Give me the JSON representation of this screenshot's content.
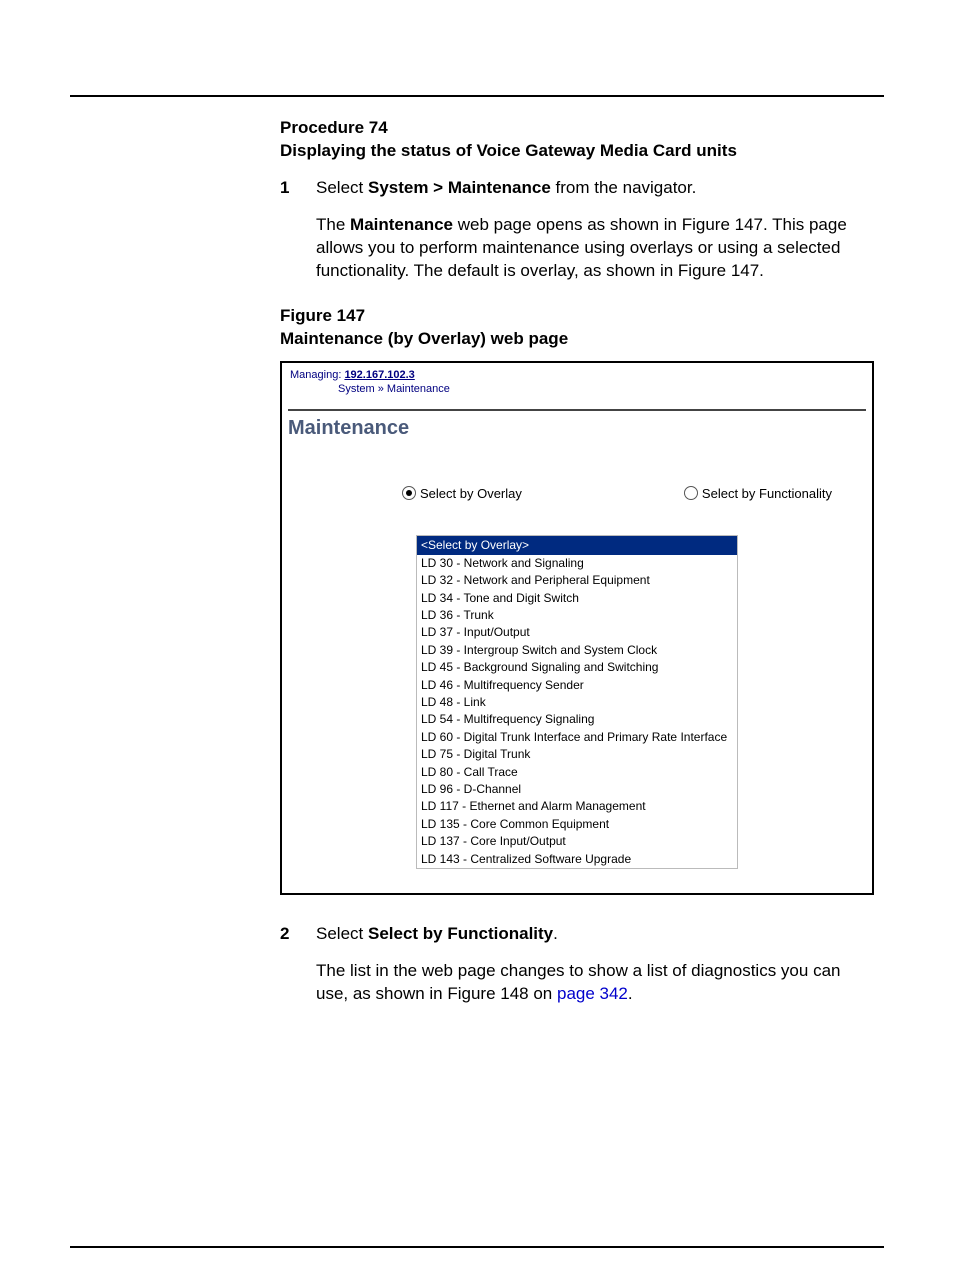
{
  "procedure": {
    "label": "Procedure 74",
    "title": "Displaying the status of Voice Gateway Media Card units"
  },
  "steps": {
    "s1_num": "1",
    "s1_pre": "Select ",
    "s1_bold": "System > Maintenance",
    "s1_post": " from the navigator.",
    "s1_para_pre": "The ",
    "s1_para_bold": "Maintenance",
    "s1_para_post": " web page opens as shown in Figure 147. This page allows you to perform maintenance using overlays or using a selected functionality. The default is overlay, as shown in Figure 147.",
    "s2_num": "2",
    "s2_pre": "Select ",
    "s2_bold": "Select by Functionality",
    "s2_post": ".",
    "s2_para_pre": "The list in the web page changes to show a list of diagnostics you can use, as shown in Figure 148 on ",
    "s2_para_link": "page 342",
    "s2_para_post": "."
  },
  "figure": {
    "label": "Figure 147",
    "title": "Maintenance (by Overlay) web page"
  },
  "screenshot": {
    "managing_label": "Managing: ",
    "managing_ip": "192.167.102.3",
    "breadcrumb": "System » Maintenance",
    "heading": "Maintenance",
    "radio_overlay": "Select by Overlay",
    "radio_functionality": "Select by Functionality",
    "list_header": "<Select by Overlay>",
    "items": {
      "i0": "LD 30  - Network and Signaling",
      "i1": "LD 32  - Network and Peripheral Equipment",
      "i2": "LD 34  - Tone and Digit Switch",
      "i3": "LD 36  - Trunk",
      "i4": "LD 37  - Input/Output",
      "i5": "LD 39  - Intergroup Switch and System Clock",
      "i6": "LD 45  - Background Signaling and Switching",
      "i7": "LD 46  - Multifrequency Sender",
      "i8": "LD 48  - Link",
      "i9": "LD 54  - Multifrequency Signaling",
      "i10": "LD 60  - Digital Trunk Interface and Primary Rate Interface",
      "i11": "LD 75  - Digital Trunk",
      "i12": "LD 80  - Call Trace",
      "i13": "LD 96  - D-Channel",
      "i14": "LD 117 - Ethernet and Alarm Management",
      "i15": "LD 135 - Core Common Equipment",
      "i16": "LD 137 - Core Input/Output",
      "i17": "LD 143 - Centralized Software Upgrade"
    }
  },
  "colors": {
    "list_header_bg": "#002a80",
    "heading_color": "#4a5a7a",
    "link_color": "#0000cc",
    "nav_text": "#000080"
  }
}
